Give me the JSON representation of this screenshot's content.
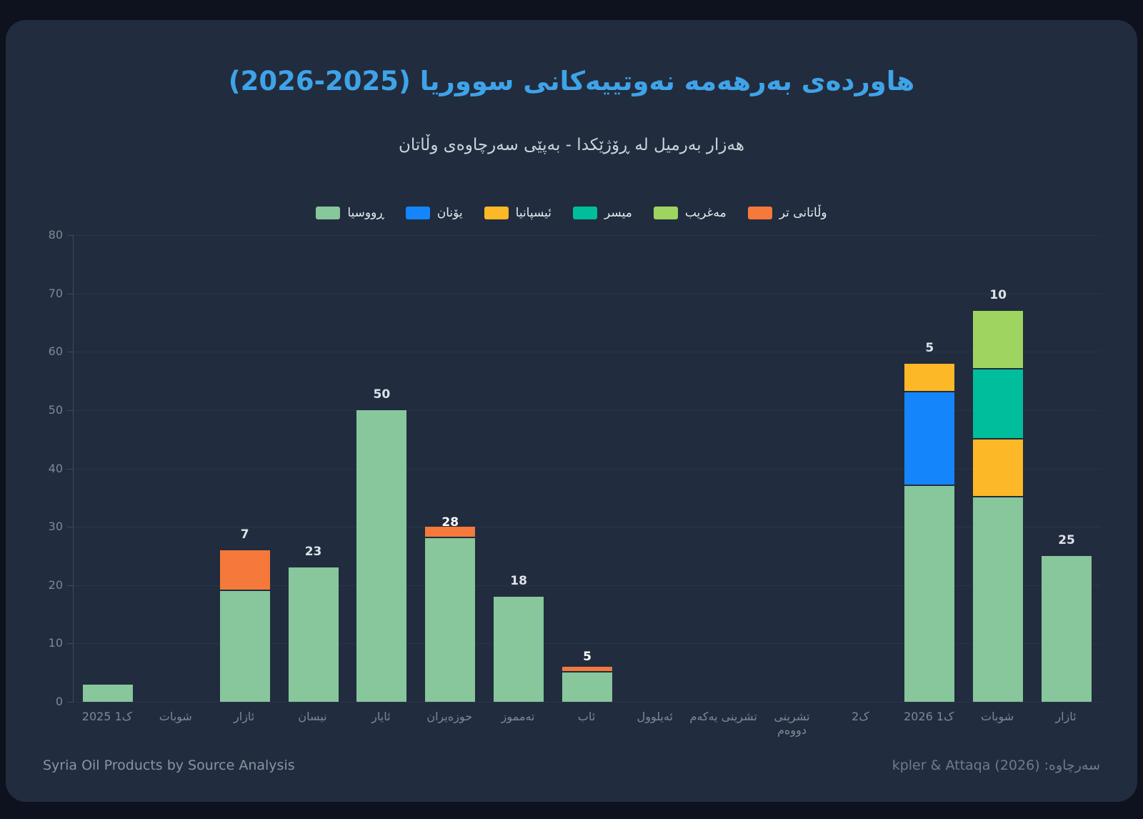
{
  "title": "هاوردەی بەرهەمە نەوتییەکانی سووریا (2025-2026)",
  "subtitle": "هەزار بەرمیل لە ڕۆژێکدا - بەپێی سەرچاوەی وڵاتان",
  "footer": {
    "left": "Syria Oil Products by Source Analysis",
    "right": "سەرچاوە: (2026) kpler & Attaqa"
  },
  "colors": {
    "background": "#0d121e",
    "card": "#212c3e",
    "title": "#3fa3e8",
    "subtitle": "#ccd3dc",
    "gridline": "#2b3548",
    "axis_line": "#3e4a5e",
    "tick_text": "#7e8897",
    "value_label_outside": "#dde3ea",
    "value_label_inside": "#ffffff"
  },
  "chart_data": {
    "type": "bar",
    "stacked": true,
    "grid": true,
    "legend_position": "top",
    "ylim": [
      0,
      80
    ],
    "yticks": [
      0,
      10,
      20,
      30,
      40,
      50,
      60,
      70,
      80
    ],
    "label_min": 5,
    "categories": [
      "ک1 2025",
      "شوبات",
      "ئازار",
      "نیسان",
      "ئایار",
      "حوزەیران",
      "تەمموز",
      "ئاب",
      "ئەیلوول",
      "تشرینی یەکەم",
      "تشرینی دووەم",
      "ک2",
      "ک1 2026",
      "شوبات",
      "ئازار"
    ],
    "series": [
      {
        "name": "ڕووسیا",
        "color": "#87c79b",
        "values": [
          3,
          0,
          19,
          23,
          50,
          28,
          18,
          5,
          0,
          0,
          0,
          0,
          37,
          35,
          25
        ]
      },
      {
        "name": "یۆنان",
        "color": "#1585fb",
        "values": [
          0,
          0,
          0,
          0,
          0,
          0,
          0,
          0,
          0,
          0,
          0,
          0,
          16,
          0,
          0
        ]
      },
      {
        "name": "ئیسپانیا",
        "color": "#fcb826",
        "values": [
          0,
          0,
          0,
          0,
          0,
          0,
          0,
          0,
          0,
          0,
          0,
          0,
          5,
          10,
          0
        ]
      },
      {
        "name": "میسر",
        "color": "#00bd9c",
        "values": [
          0,
          0,
          0,
          0,
          0,
          0,
          0,
          0,
          0,
          0,
          0,
          0,
          0,
          12,
          0
        ]
      },
      {
        "name": "مەغریب",
        "color": "#9ed45f",
        "values": [
          0,
          0,
          0,
          0,
          0,
          0,
          0,
          0,
          0,
          0,
          0,
          0,
          0,
          10,
          0
        ]
      },
      {
        "name": "وڵاتانی تر",
        "color": "#f5793b",
        "values": [
          0,
          0,
          7,
          0,
          0,
          2,
          0,
          1,
          0,
          0,
          0,
          0,
          0,
          0,
          0
        ]
      }
    ]
  }
}
